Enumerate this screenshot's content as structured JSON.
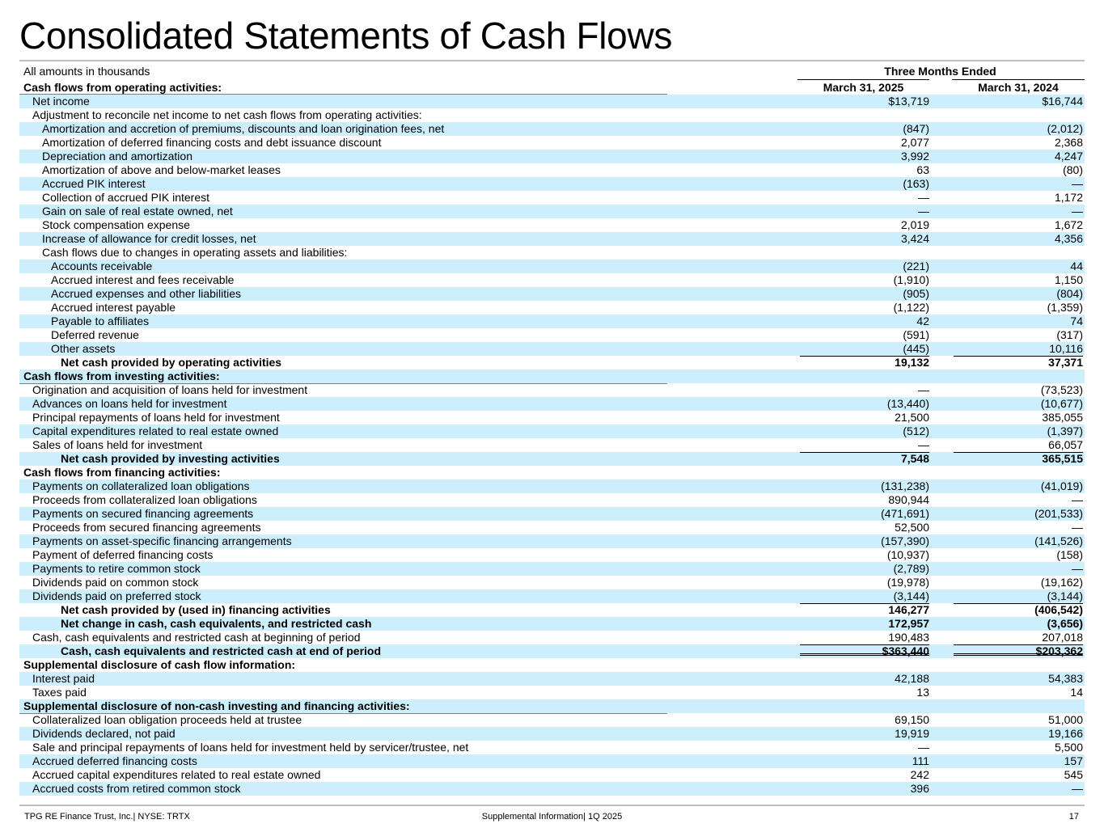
{
  "title": "Consolidated Statements of Cash Flows",
  "header": {
    "units": "All amounts in thousands",
    "period_group": "Three Months Ended",
    "section_label": "Cash flows from operating activities:",
    "col1": "March 31, 2025",
    "col2": "March 31, 2024"
  },
  "rows": [
    {
      "label": "Net income",
      "indent": 1,
      "shaded": true,
      "v1": "$13,719",
      "v2": "$16,744"
    },
    {
      "label": "Adjustment to reconcile net income to net cash flows from operating activities:",
      "indent": 1,
      "shaded": false,
      "v1": "",
      "v2": ""
    },
    {
      "label": "Amortization and accretion of premiums, discounts and loan origination fees, net",
      "indent": 2,
      "shaded": true,
      "v1": "(847)",
      "v2": "(2,012)"
    },
    {
      "label": "Amortization of deferred financing costs and debt issuance discount",
      "indent": 2,
      "shaded": false,
      "v1": "2,077",
      "v2": "2,368"
    },
    {
      "label": "Depreciation and amortization",
      "indent": 2,
      "shaded": true,
      "v1": "3,992",
      "v2": "4,247"
    },
    {
      "label": "Amortization of above and below-market leases",
      "indent": 2,
      "shaded": false,
      "v1": "63",
      "v2": "(80)"
    },
    {
      "label": "Accrued PIK interest",
      "indent": 2,
      "shaded": true,
      "v1": "(163)",
      "v2": "—"
    },
    {
      "label": "Collection of accrued PIK interest",
      "indent": 2,
      "shaded": false,
      "v1": "—",
      "v2": "1,172"
    },
    {
      "label": "Gain on sale of real estate owned, net",
      "indent": 2,
      "shaded": true,
      "v1": "—",
      "v2": "—"
    },
    {
      "label": "Stock compensation expense",
      "indent": 2,
      "shaded": false,
      "v1": "2,019",
      "v2": "1,672"
    },
    {
      "label": "Increase of allowance for credit losses, net",
      "indent": 2,
      "shaded": true,
      "v1": "3,424",
      "v2": "4,356"
    },
    {
      "label": "Cash flows due to changes in operating assets and liabilities:",
      "indent": 2,
      "shaded": false,
      "v1": "",
      "v2": ""
    },
    {
      "label": "Accounts receivable",
      "indent": 3,
      "shaded": true,
      "v1": "(221)",
      "v2": "44"
    },
    {
      "label": "Accrued interest and fees receivable",
      "indent": 3,
      "shaded": false,
      "v1": "(1,910)",
      "v2": "1,150"
    },
    {
      "label": "Accrued expenses and other liabilities",
      "indent": 3,
      "shaded": true,
      "v1": "(905)",
      "v2": "(804)"
    },
    {
      "label": "Accrued interest payable",
      "indent": 3,
      "shaded": false,
      "v1": "(1,122)",
      "v2": "(1,359)"
    },
    {
      "label": "Payable to affiliates",
      "indent": 3,
      "shaded": true,
      "v1": "42",
      "v2": "74"
    },
    {
      "label": "Deferred revenue",
      "indent": 3,
      "shaded": false,
      "v1": "(591)",
      "v2": "(317)"
    },
    {
      "label": "Other assets",
      "indent": 3,
      "shaded": true,
      "v1": "(445)",
      "v2": "10,116",
      "style": "sub"
    },
    {
      "label": "Net cash provided by operating activities",
      "indent": 4,
      "shaded": false,
      "v1": "19,132",
      "v2": "37,371",
      "style": "total"
    },
    {
      "label": "Cash flows from investing activities:",
      "indent": 0,
      "shaded": true,
      "v1": "",
      "v2": "",
      "style": "section"
    },
    {
      "label": "Origination and acquisition of loans held for investment",
      "indent": 1,
      "shaded": false,
      "v1": "—",
      "v2": "(73,523)"
    },
    {
      "label": "Advances on loans held for investment",
      "indent": 1,
      "shaded": true,
      "v1": "(13,440)",
      "v2": "(10,677)"
    },
    {
      "label": "Principal repayments of loans held for investment",
      "indent": 1,
      "shaded": false,
      "v1": "21,500",
      "v2": "385,055"
    },
    {
      "label": "Capital expenditures related to real estate owned",
      "indent": 1,
      "shaded": true,
      "v1": "(512)",
      "v2": "(1,397)"
    },
    {
      "label": "Sales of loans held for investment",
      "indent": 1,
      "shaded": false,
      "v1": "—",
      "v2": "66,057",
      "style": "sub"
    },
    {
      "label": "Net cash provided by investing activities",
      "indent": 4,
      "shaded": true,
      "v1": "7,548",
      "v2": "365,515",
      "style": "total"
    },
    {
      "label": "Cash flows from financing activities:",
      "indent": 0,
      "shaded": false,
      "v1": "",
      "v2": "",
      "style": "section"
    },
    {
      "label": "Payments on collateralized loan obligations",
      "indent": 1,
      "shaded": true,
      "v1": "(131,238)",
      "v2": "(41,019)"
    },
    {
      "label": "Proceeds from collateralized loan obligations",
      "indent": 1,
      "shaded": false,
      "v1": "890,944",
      "v2": "—"
    },
    {
      "label": "Payments on secured financing agreements",
      "indent": 1,
      "shaded": true,
      "v1": "(471,691)",
      "v2": "(201,533)"
    },
    {
      "label": "Proceeds from secured financing agreements",
      "indent": 1,
      "shaded": false,
      "v1": "52,500",
      "v2": "—"
    },
    {
      "label": "Payments on asset-specific financing arrangements",
      "indent": 1,
      "shaded": true,
      "v1": "(157,390)",
      "v2": "(141,526)"
    },
    {
      "label": "Payment of deferred financing costs",
      "indent": 1,
      "shaded": false,
      "v1": "(10,937)",
      "v2": "(158)"
    },
    {
      "label": "Payments to retire common stock",
      "indent": 1,
      "shaded": true,
      "v1": "(2,789)",
      "v2": "—"
    },
    {
      "label": "Dividends paid on common stock",
      "indent": 1,
      "shaded": false,
      "v1": "(19,978)",
      "v2": "(19,162)"
    },
    {
      "label": "Dividends paid on preferred stock",
      "indent": 1,
      "shaded": true,
      "v1": "(3,144)",
      "v2": "(3,144)",
      "style": "sub"
    },
    {
      "label": "Net cash provided by (used in) financing activities",
      "indent": 4,
      "shaded": false,
      "v1": "146,277",
      "v2": "(406,542)",
      "style": "total"
    },
    {
      "label": "Net change in cash, cash equivalents, and restricted cash",
      "indent": 4,
      "shaded": true,
      "v1": "172,957",
      "v2": "(3,656)",
      "style": "boldonly"
    },
    {
      "label": "Cash, cash equivalents and restricted cash at beginning of period",
      "indent": 1,
      "shaded": false,
      "v1": "190,483",
      "v2": "207,018",
      "style": "sub"
    },
    {
      "label": "Cash, cash equivalents and restricted cash at end of period",
      "indent": 4,
      "shaded": true,
      "v1": "$363,440",
      "v2": "$203,362",
      "style": "grand"
    },
    {
      "label": "Supplemental disclosure of cash flow information:",
      "indent": 0,
      "shaded": false,
      "v1": "",
      "v2": "",
      "style": "section"
    },
    {
      "label": "Interest paid",
      "indent": 1,
      "shaded": true,
      "v1": "42,188",
      "v2": "54,383"
    },
    {
      "label": "Taxes paid",
      "indent": 1,
      "shaded": false,
      "v1": "13",
      "v2": "14"
    },
    {
      "label": "Supplemental disclosure of non-cash investing and financing activities:",
      "indent": 0,
      "shaded": true,
      "v1": "",
      "v2": "",
      "style": "section"
    },
    {
      "label": "Collateralized loan obligation proceeds held at trustee",
      "indent": 1,
      "shaded": false,
      "v1": "69,150",
      "v2": "51,000"
    },
    {
      "label": "Dividends declared, not paid",
      "indent": 1,
      "shaded": true,
      "v1": "19,919",
      "v2": "19,166"
    },
    {
      "label": "Sale and principal repayments of loans held for investment held by servicer/trustee, net",
      "indent": 1,
      "shaded": false,
      "v1": "—",
      "v2": "5,500"
    },
    {
      "label": "Accrued deferred financing costs",
      "indent": 1,
      "shaded": true,
      "v1": "111",
      "v2": "157"
    },
    {
      "label": "Accrued capital expenditures related to real estate owned",
      "indent": 1,
      "shaded": false,
      "v1": "242",
      "v2": "545"
    },
    {
      "label": "Accrued costs from retired common stock",
      "indent": 1,
      "shaded": true,
      "v1": "396",
      "v2": "—"
    }
  ],
  "footer": {
    "left": "TPG RE Finance Trust, Inc.| NYSE: TRTX",
    "center": "Supplemental Information| 1Q 2025",
    "page": "17"
  }
}
